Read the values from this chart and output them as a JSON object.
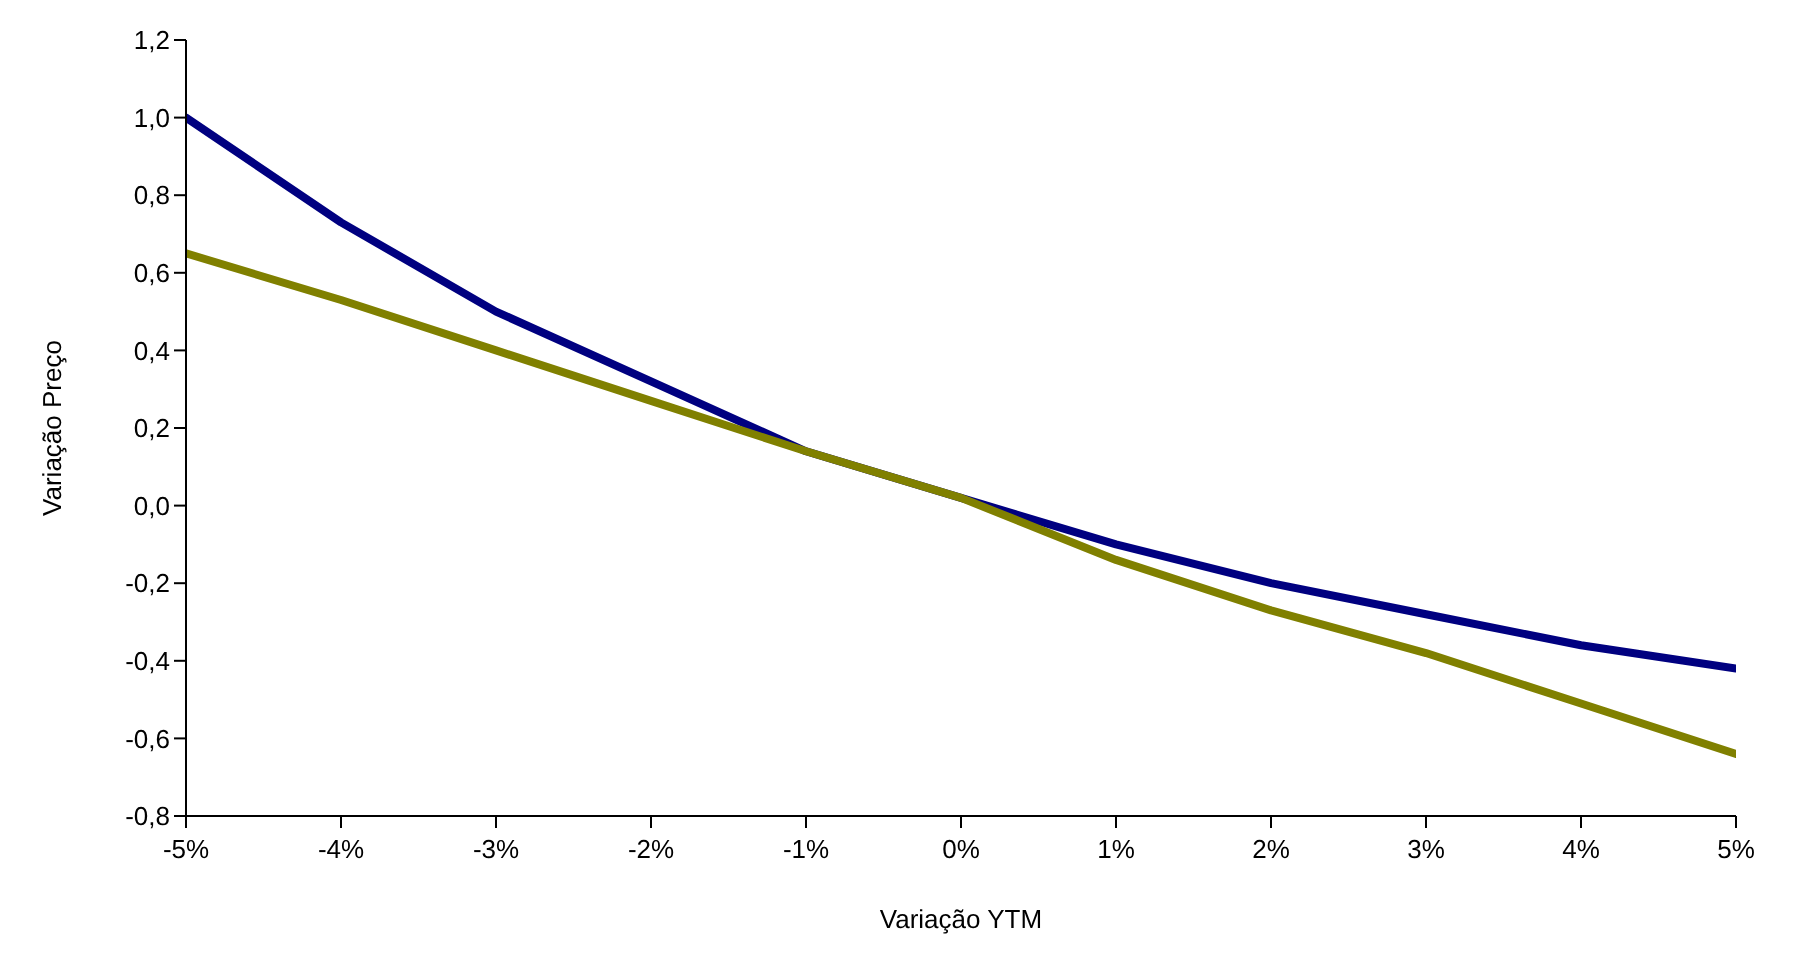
{
  "chart_data": {
    "type": "line",
    "xlabel": "Variação YTM",
    "ylabel": "Variação Preço",
    "x": [
      -5,
      -4,
      -3,
      -2,
      -1,
      0,
      1,
      2,
      3,
      4,
      5
    ],
    "series": [
      {
        "color": "#000080",
        "values": [
          1.0,
          0.73,
          0.5,
          0.32,
          0.14,
          0.02,
          -0.1,
          -0.2,
          -0.28,
          -0.36,
          -0.42
        ]
      },
      {
        "color": "#808000",
        "values": [
          0.65,
          0.53,
          0.4,
          0.27,
          0.14,
          0.02,
          -0.14,
          -0.27,
          -0.38,
          -0.51,
          -0.64
        ]
      }
    ],
    "xlim": [
      -5,
      5
    ],
    "xticks": [
      {
        "value": -5,
        "label": "-5%"
      },
      {
        "value": -4,
        "label": "-4%"
      },
      {
        "value": -3,
        "label": "-3%"
      },
      {
        "value": -2,
        "label": "-2%"
      },
      {
        "value": -1,
        "label": "-1%"
      },
      {
        "value": 0,
        "label": "0%"
      },
      {
        "value": 1,
        "label": "1%"
      },
      {
        "value": 2,
        "label": "2%"
      },
      {
        "value": 3,
        "label": "3%"
      },
      {
        "value": 4,
        "label": "4%"
      },
      {
        "value": 5,
        "label": "5%"
      }
    ],
    "ylim": [
      -0.8,
      1.2
    ],
    "yticks": [
      {
        "value": -0.8,
        "label": "-0,8"
      },
      {
        "value": -0.6,
        "label": "-0,6"
      },
      {
        "value": -0.4,
        "label": "-0,4"
      },
      {
        "value": -0.2,
        "label": "-0,2"
      },
      {
        "value": 0,
        "label": "0,0"
      },
      {
        "value": 0.2,
        "label": "0,2"
      },
      {
        "value": 0.4,
        "label": "0,4"
      },
      {
        "value": 0.6,
        "label": "0,6"
      },
      {
        "value": 0.8,
        "label": "0,8"
      },
      {
        "value": 1.0,
        "label": "1,0"
      },
      {
        "value": 1.2,
        "label": "1,2"
      }
    ],
    "grid": false,
    "legend": false,
    "marker": "none",
    "line_style": "solid"
  }
}
